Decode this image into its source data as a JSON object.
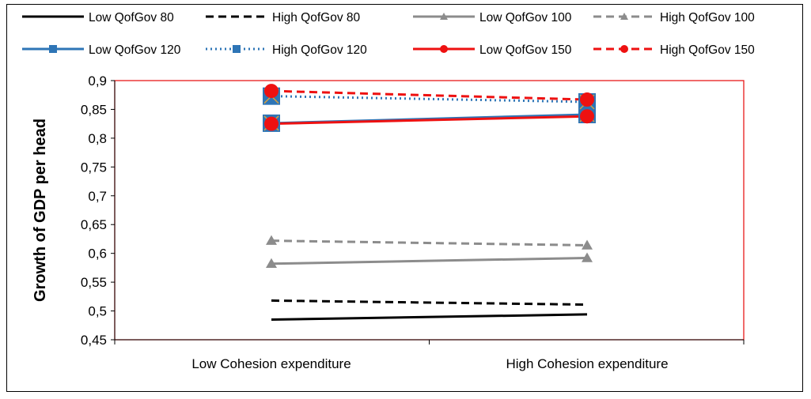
{
  "chart_data": {
    "type": "line",
    "categories": [
      "Low Cohesion expenditure",
      "High Cohesion expenditure"
    ],
    "ylabel": "Growth of GDP per head",
    "xlabel": "",
    "ylim": [
      0.45,
      0.9
    ],
    "yticks": [
      "0,45",
      "0,5",
      "0,55",
      "0,6",
      "0,65",
      "0,7",
      "0,75",
      "0,8",
      "0,85",
      "0,9"
    ],
    "yticks_values": [
      0.45,
      0.5,
      0.55,
      0.6,
      0.65,
      0.7,
      0.75,
      0.8,
      0.85,
      0.9
    ],
    "legend_position": "top",
    "grid": false,
    "plot_border_color": "#e8191a",
    "series": [
      {
        "name": "Low QofGov 80",
        "values": [
          0.485,
          0.494
        ],
        "color": "#000000",
        "dash": "solid",
        "marker": "none"
      },
      {
        "name": "High QofGov 80",
        "values": [
          0.518,
          0.511
        ],
        "color": "#000000",
        "dash": "dashed",
        "marker": "none"
      },
      {
        "name": "Low QofGov 100",
        "values": [
          0.582,
          0.592
        ],
        "color": "#8c8c8c",
        "dash": "solid",
        "marker": "triangle"
      },
      {
        "name": "High QofGov 100",
        "values": [
          0.622,
          0.614
        ],
        "color": "#8c8c8c",
        "dash": "dashed",
        "marker": "triangle"
      },
      {
        "name": "Low QofGov 120",
        "values": [
          0.826,
          0.841
        ],
        "color": "#2e75b6",
        "dash": "solid",
        "marker": "square"
      },
      {
        "name": "High QofGov 120",
        "values": [
          0.873,
          0.863
        ],
        "color": "#2e75b6",
        "dash": "dotted",
        "marker": "square"
      },
      {
        "name": "Low QofGov 150",
        "values": [
          0.825,
          0.838
        ],
        "color": "#ee1111",
        "dash": "solid",
        "marker": "circle"
      },
      {
        "name": "High QofGov 150",
        "values": [
          0.882,
          0.867
        ],
        "color": "#ee1111",
        "dash": "dashed",
        "marker": "circle"
      }
    ]
  }
}
